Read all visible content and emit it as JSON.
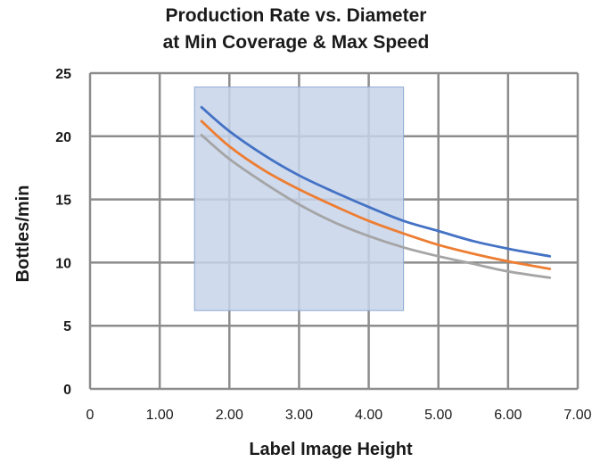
{
  "chart_data": {
    "type": "line",
    "title_lines": [
      "Production Rate vs. Diameter",
      "at Min Coverage & Max Speed"
    ],
    "xlabel": "Label Image Height",
    "ylabel": "Bottles/min",
    "xlim": [
      0,
      7
    ],
    "ylim": [
      0,
      25
    ],
    "x_ticks": [
      "0",
      "1.00",
      "2.00",
      "3.00",
      "4.00",
      "5.00",
      "6.00",
      "7.00"
    ],
    "y_ticks": [
      "0",
      "5",
      "10",
      "15",
      "20",
      "25"
    ],
    "grid": true,
    "legend": "none",
    "shaded_region": {
      "x": [
        1.5,
        4.5
      ],
      "y": [
        6.2,
        23.9
      ],
      "color": "#c7d3ea"
    },
    "series": [
      {
        "color": "#4472c4",
        "x": [
          1.6,
          2.0,
          2.5,
          3.0,
          3.5,
          4.0,
          4.5,
          5.0,
          5.5,
          6.0,
          6.6
        ],
        "values": [
          22.3,
          20.4,
          18.5,
          16.9,
          15.6,
          14.4,
          13.3,
          12.5,
          11.7,
          11.1,
          10.5
        ]
      },
      {
        "color": "#ed7d31",
        "x": [
          1.6,
          2.0,
          2.5,
          3.0,
          3.5,
          4.0,
          4.5,
          5.0,
          5.5,
          6.0,
          6.6
        ],
        "values": [
          21.2,
          19.2,
          17.3,
          15.8,
          14.5,
          13.3,
          12.3,
          11.4,
          10.7,
          10.1,
          9.5
        ]
      },
      {
        "color": "#a5a5a5",
        "x": [
          1.6,
          2.0,
          2.5,
          3.0,
          3.5,
          4.0,
          4.5,
          5.0,
          5.5,
          6.0,
          6.6
        ],
        "values": [
          20.1,
          18.2,
          16.3,
          14.6,
          13.2,
          12.1,
          11.2,
          10.5,
          9.9,
          9.3,
          8.8
        ]
      }
    ]
  }
}
